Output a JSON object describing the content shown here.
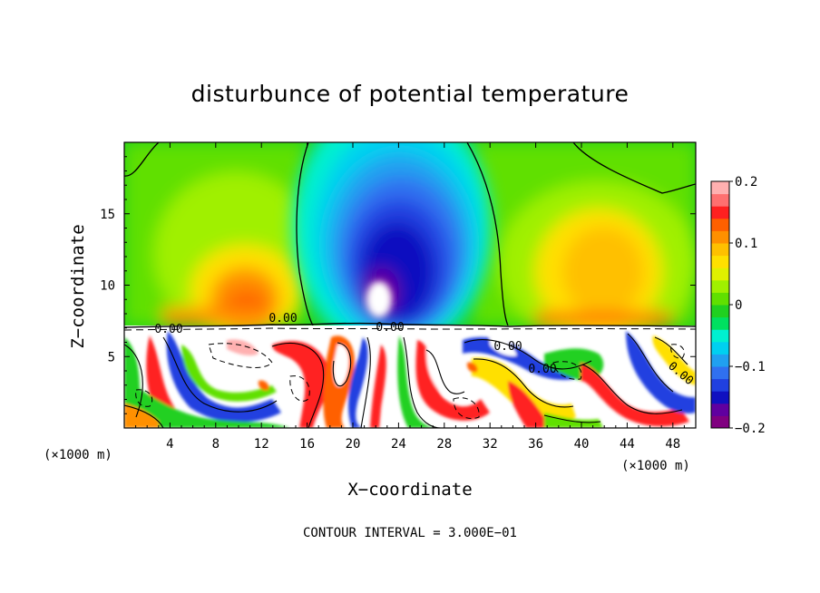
{
  "chart_data": {
    "type": "heatmap",
    "title": "disturbunce of potential temperature",
    "xlabel": "X−coordinate",
    "ylabel": "Z−coordinate",
    "x_unit_left": "(×1000 m)",
    "x_unit_right": "(×1000 m)",
    "footer": "CONTOUR INTERVAL = 3.000E−01",
    "xlim": [
      0,
      50
    ],
    "ylim": [
      0,
      20
    ],
    "x_ticks": [
      4,
      8,
      12,
      16,
      20,
      24,
      28,
      32,
      36,
      40,
      44,
      48
    ],
    "y_ticks": [
      5,
      10,
      15
    ],
    "colorbar": {
      "range": [
        -0.2,
        0.2
      ],
      "ticks": [
        {
          "value": 0.2,
          "label": "0.2"
        },
        {
          "value": 0.1,
          "label": "0.1"
        },
        {
          "value": 0,
          "label": "0"
        },
        {
          "value": -0.1,
          "label": "−0.1"
        },
        {
          "value": -0.2,
          "label": "−0.2"
        }
      ],
      "colors": [
        "#800080",
        "#6000a0",
        "#1010c0",
        "#2040e0",
        "#3070f0",
        "#20a0f0",
        "#00d0f0",
        "#00f0d0",
        "#00e060",
        "#20d020",
        "#60e000",
        "#a0f000",
        "#e0f000",
        "#ffe000",
        "#ffc000",
        "#ff9000",
        "#ff6000",
        "#ff2020",
        "#ff7070",
        "#ffb0b0"
      ]
    },
    "contour_labels": [
      "0.00",
      "0.00",
      "0.00",
      "0.00",
      "0.00",
      "0.00"
    ],
    "upper_field_features": [
      {
        "type": "cold_anomaly",
        "x": 22.5,
        "z": 12.5,
        "value": -0.19
      },
      {
        "type": "warm_anomaly",
        "x": 10.5,
        "z": 9.5,
        "value": 0.15
      },
      {
        "type": "warm_anomaly",
        "x": 41.5,
        "z": 11.0,
        "value": 0.11
      }
    ],
    "boundary_layer_top_z": 7.1
  }
}
